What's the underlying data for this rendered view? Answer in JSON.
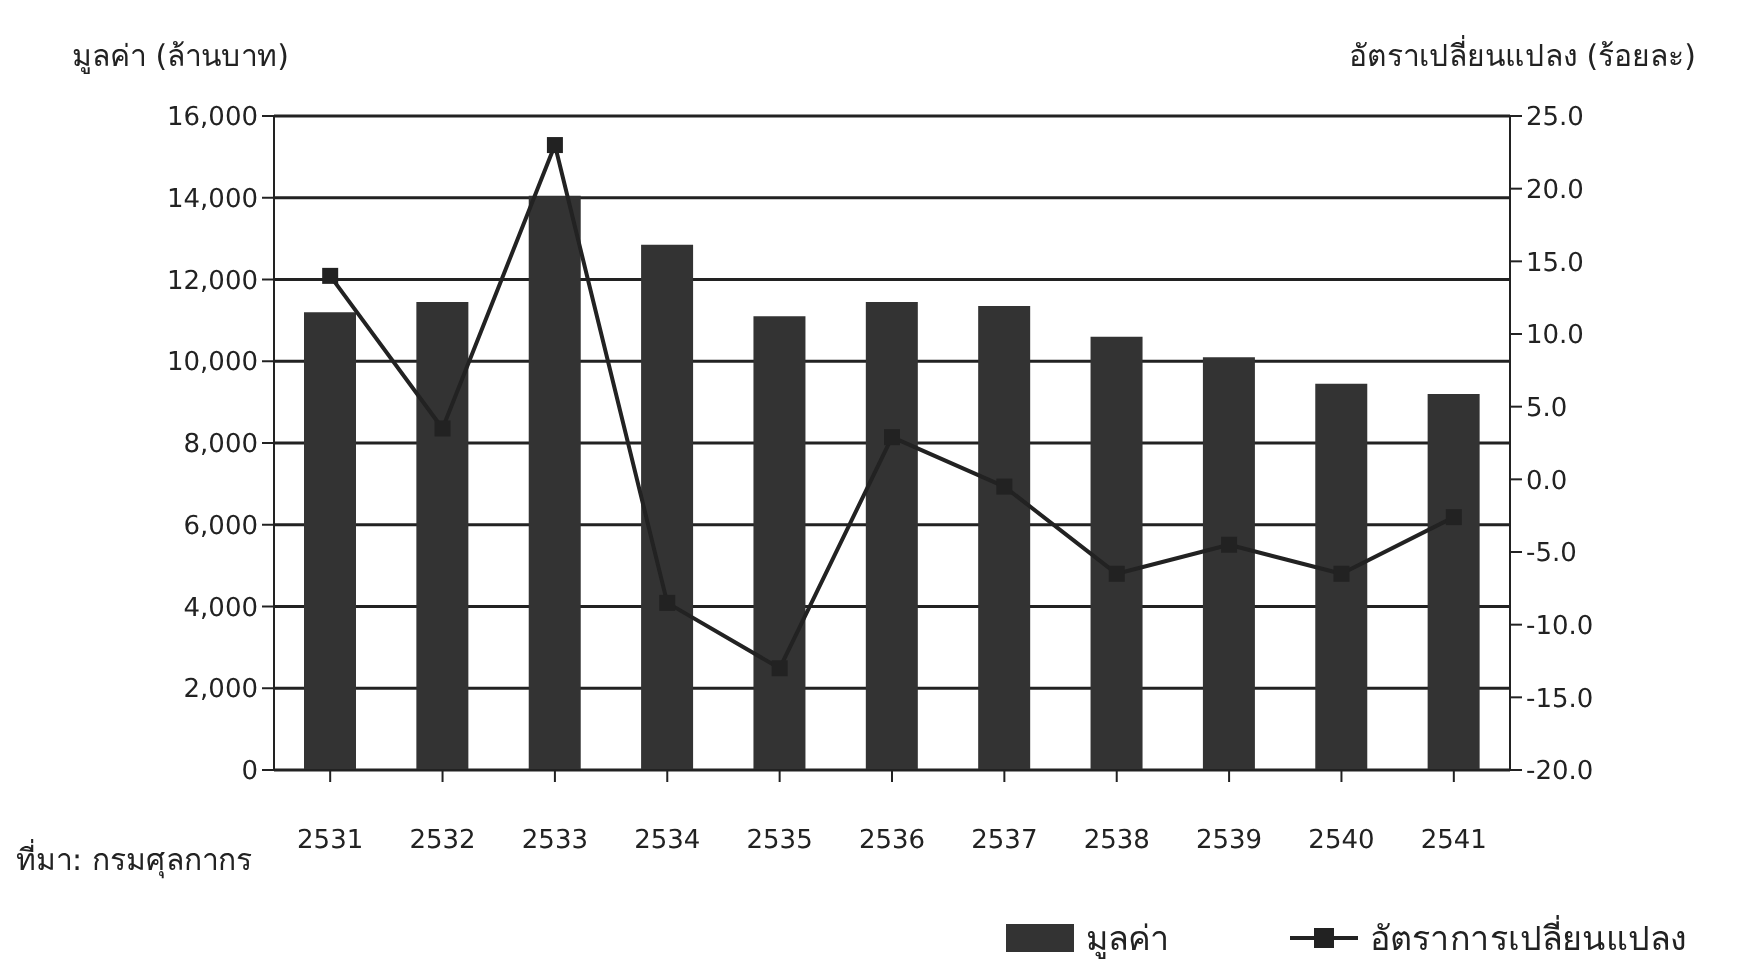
{
  "chart_data": {
    "type": "bar",
    "ylabel": "มูลค่า (ล้านบาท)",
    "y2label": "อัตราเปลี่ยนแปลง (ร้อยละ)",
    "categories": [
      "2531",
      "2532",
      "2533",
      "2534",
      "2535",
      "2536",
      "2537",
      "2538",
      "2539",
      "2540",
      "2541"
    ],
    "series": [
      {
        "name": "มูลค่า",
        "color": "#333333",
        "values": [
          11200,
          11450,
          14050,
          12850,
          11100,
          11450,
          11350,
          10600,
          10100,
          9450,
          9200
        ]
      },
      {
        "name": "อัตราการเปลี่ยนแปลง",
        "type": "line",
        "axis": "y2",
        "color": "#222222",
        "marker": "square",
        "values": [
          14.0,
          3.5,
          23.0,
          -8.5,
          -13.0,
          2.9,
          -0.5,
          -6.5,
          -4.5,
          -6.5,
          -2.6
        ]
      }
    ],
    "ylim": [
      0,
      16000
    ],
    "yticks": [
      {
        "value": 0,
        "label": "0"
      },
      {
        "value": 2000,
        "label": "2,000"
      },
      {
        "value": 4000,
        "label": "4,000"
      },
      {
        "value": 6000,
        "label": "6,000"
      },
      {
        "value": 8000,
        "label": "8,000"
      },
      {
        "value": 10000,
        "label": "10,000"
      },
      {
        "value": 12000,
        "label": "12,000"
      },
      {
        "value": 14000,
        "label": "14,000"
      },
      {
        "value": 16000,
        "label": "16,000"
      }
    ],
    "y2lim": [
      -20,
      25
    ],
    "y2ticks": [
      {
        "value": -20,
        "label": "-20.0"
      },
      {
        "value": -15,
        "label": "-15.0"
      },
      {
        "value": -10,
        "label": "-10.0"
      },
      {
        "value": -5,
        "label": "-5.0"
      },
      {
        "value": 0,
        "label": "0.0"
      },
      {
        "value": 5,
        "label": "5.0"
      },
      {
        "value": 10,
        "label": "10.0"
      },
      {
        "value": 15,
        "label": "15.0"
      },
      {
        "value": 20,
        "label": "20.0"
      },
      {
        "value": 25,
        "label": "25.0"
      }
    ],
    "grid": "y",
    "legend": "bottom",
    "annotations": [
      "ที่มา: กรมศุลกากร"
    ]
  }
}
